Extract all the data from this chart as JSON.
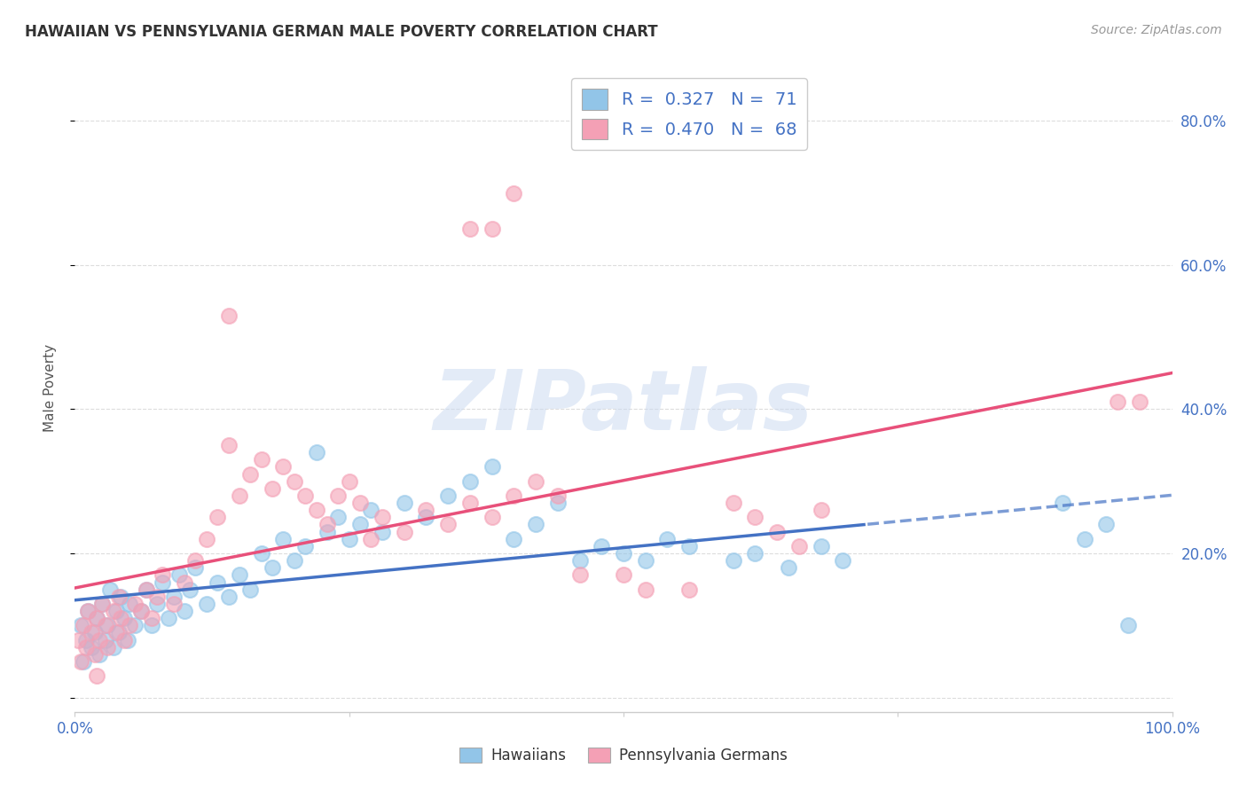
{
  "title": "HAWAIIAN VS PENNSYLVANIA GERMAN MALE POVERTY CORRELATION CHART",
  "source": "Source: ZipAtlas.com",
  "ylabel": "Male Poverty",
  "right_yticks": [
    0.0,
    0.2,
    0.4,
    0.6,
    0.8
  ],
  "right_yticklabels": [
    "",
    "20.0%",
    "40.0%",
    "60.0%",
    "80.0%"
  ],
  "hawaiians": {
    "R": 0.327,
    "N": 71,
    "color": "#92C5E8",
    "line_color": "#4472C4",
    "label": "Hawaiians"
  },
  "pa_germans": {
    "R": 0.47,
    "N": 68,
    "color": "#F4A0B5",
    "line_color": "#E8507A",
    "label": "Pennsylvania Germans"
  },
  "watermark": "ZIPatlas",
  "watermark_color": "#C8D8F0",
  "bg_color": "#FFFFFF",
  "grid_color": "#DDDDDD",
  "x_range": [
    0.0,
    1.0
  ],
  "y_range": [
    -0.02,
    0.88
  ],
  "haw_x": [
    0.005,
    0.008,
    0.01,
    0.012,
    0.015,
    0.018,
    0.02,
    0.022,
    0.025,
    0.028,
    0.03,
    0.032,
    0.035,
    0.038,
    0.04,
    0.042,
    0.045,
    0.048,
    0.05,
    0.055,
    0.06,
    0.065,
    0.07,
    0.075,
    0.08,
    0.085,
    0.09,
    0.095,
    0.1,
    0.105,
    0.11,
    0.12,
    0.13,
    0.14,
    0.15,
    0.16,
    0.17,
    0.18,
    0.19,
    0.2,
    0.21,
    0.22,
    0.23,
    0.24,
    0.25,
    0.26,
    0.27,
    0.28,
    0.3,
    0.32,
    0.34,
    0.36,
    0.38,
    0.4,
    0.42,
    0.44,
    0.46,
    0.48,
    0.5,
    0.52,
    0.54,
    0.56,
    0.6,
    0.62,
    0.65,
    0.68,
    0.7,
    0.9,
    0.92,
    0.94,
    0.96
  ],
  "haw_y": [
    0.1,
    0.05,
    0.08,
    0.12,
    0.07,
    0.09,
    0.11,
    0.06,
    0.13,
    0.08,
    0.1,
    0.15,
    0.07,
    0.12,
    0.09,
    0.14,
    0.11,
    0.08,
    0.13,
    0.1,
    0.12,
    0.15,
    0.1,
    0.13,
    0.16,
    0.11,
    0.14,
    0.17,
    0.12,
    0.15,
    0.18,
    0.13,
    0.16,
    0.14,
    0.17,
    0.15,
    0.2,
    0.18,
    0.22,
    0.19,
    0.21,
    0.34,
    0.23,
    0.25,
    0.22,
    0.24,
    0.26,
    0.23,
    0.27,
    0.25,
    0.28,
    0.3,
    0.32,
    0.22,
    0.24,
    0.27,
    0.19,
    0.21,
    0.2,
    0.19,
    0.22,
    0.21,
    0.19,
    0.2,
    0.18,
    0.21,
    0.19,
    0.27,
    0.22,
    0.24,
    0.1
  ],
  "pag_x": [
    0.003,
    0.005,
    0.008,
    0.01,
    0.012,
    0.015,
    0.018,
    0.02,
    0.022,
    0.025,
    0.028,
    0.03,
    0.035,
    0.038,
    0.04,
    0.042,
    0.045,
    0.05,
    0.055,
    0.06,
    0.065,
    0.07,
    0.075,
    0.08,
    0.09,
    0.1,
    0.11,
    0.12,
    0.13,
    0.14,
    0.15,
    0.16,
    0.17,
    0.18,
    0.19,
    0.2,
    0.21,
    0.22,
    0.23,
    0.24,
    0.25,
    0.26,
    0.27,
    0.28,
    0.3,
    0.32,
    0.34,
    0.36,
    0.38,
    0.4,
    0.14,
    0.36,
    0.38,
    0.4,
    0.42,
    0.44,
    0.46,
    0.5,
    0.52,
    0.56,
    0.6,
    0.62,
    0.64,
    0.66,
    0.68,
    0.95,
    0.97,
    0.02
  ],
  "pag_y": [
    0.08,
    0.05,
    0.1,
    0.07,
    0.12,
    0.09,
    0.06,
    0.11,
    0.08,
    0.13,
    0.1,
    0.07,
    0.12,
    0.09,
    0.14,
    0.11,
    0.08,
    0.1,
    0.13,
    0.12,
    0.15,
    0.11,
    0.14,
    0.17,
    0.13,
    0.16,
    0.19,
    0.22,
    0.25,
    0.35,
    0.28,
    0.31,
    0.33,
    0.29,
    0.32,
    0.3,
    0.28,
    0.26,
    0.24,
    0.28,
    0.3,
    0.27,
    0.22,
    0.25,
    0.23,
    0.26,
    0.24,
    0.27,
    0.25,
    0.28,
    0.53,
    0.65,
    0.65,
    0.7,
    0.3,
    0.28,
    0.17,
    0.17,
    0.15,
    0.15,
    0.27,
    0.25,
    0.23,
    0.21,
    0.26,
    0.41,
    0.41,
    0.03
  ]
}
